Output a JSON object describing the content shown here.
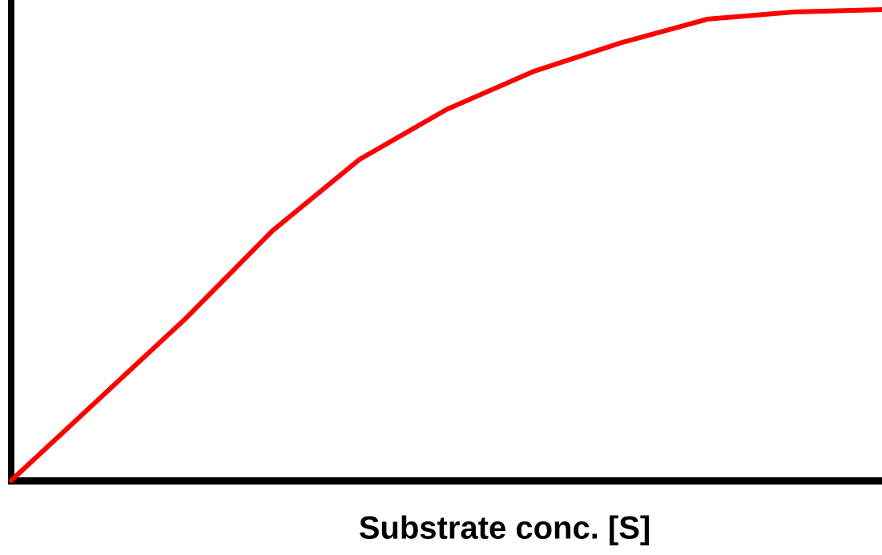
{
  "chart_data": {
    "type": "line",
    "xlabel": "Substrate conc. [S]",
    "x": [
      0,
      10,
      20,
      30,
      40,
      50,
      60,
      70,
      80,
      90,
      100
    ],
    "series": [
      {
        "color": "#ff0000",
        "values": [
          0,
          17,
          34,
          52.5,
          67.5,
          78,
          86,
          92,
          97,
          98.5,
          99
        ]
      }
    ],
    "xlim": [
      0,
      100
    ],
    "ylim": [
      0,
      100
    ]
  }
}
